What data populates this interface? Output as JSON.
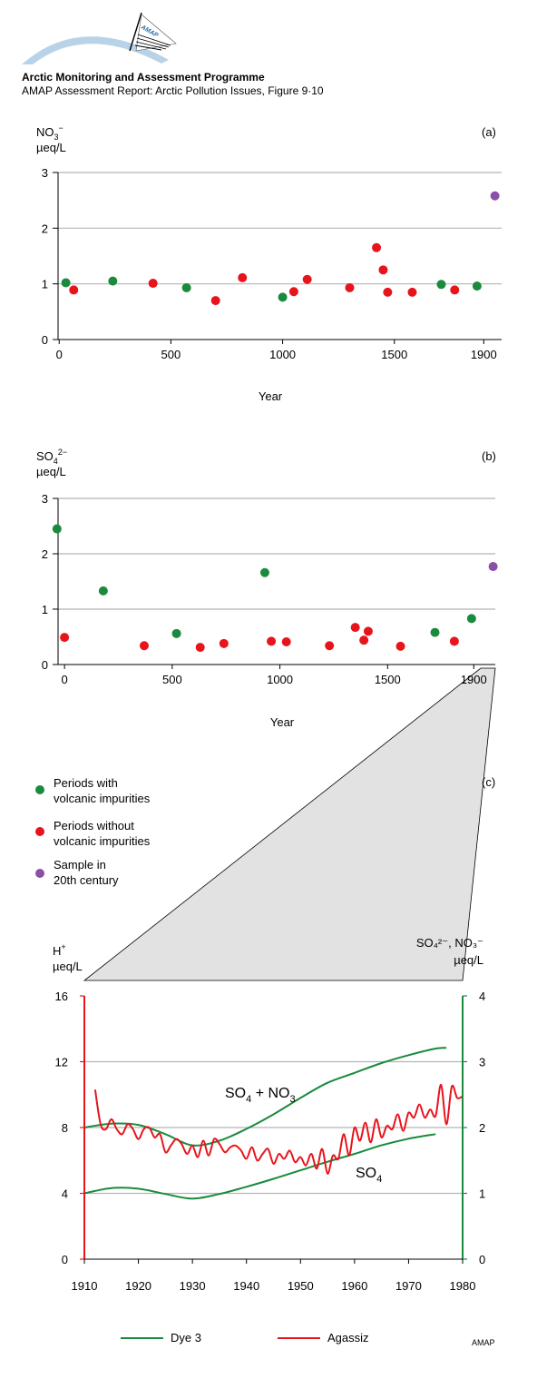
{
  "header": {
    "logo_text": "AMAP",
    "org": "Arctic Monitoring and Assessment Programme",
    "report": "AMAP Assessment Report: Arctic Pollution Issues, Figure 9·10"
  },
  "colors": {
    "volcanic": "#1a8a3c",
    "non_volcanic": "#e8141c",
    "twentieth": "#8b4fa8",
    "dye3": "#1a8a3c",
    "agassiz": "#e8141c",
    "grid": "#b4b4b4",
    "zoom_fill": "#e2e2e2"
  },
  "legend": {
    "items": [
      {
        "line1": "Periods with",
        "line2": "volcanic impurities",
        "color": "#1a8a3c"
      },
      {
        "line1": "Periods without",
        "line2": "volcanic impurities",
        "color": "#e8141c"
      },
      {
        "line1": "Sample in",
        "line2": "20th century",
        "color": "#8b4fa8"
      }
    ]
  },
  "footer": {
    "credit": "AMAP"
  },
  "chart_data": [
    {
      "type": "scatter",
      "panel": "(a)",
      "ylabel_main": "NO",
      "ylabel_sub": "3",
      "ylabel_sup": "−",
      "ylabel_unit": "µeq/L",
      "xlabel": "Year",
      "xlim": [
        -5,
        1980
      ],
      "ylim": [
        0,
        3
      ],
      "yticks": [
        "0",
        "1",
        "2",
        "3"
      ],
      "xticks": [
        {
          "v": 0,
          "label": "0"
        },
        {
          "v": 500,
          "label": "500"
        },
        {
          "v": 1000,
          "label": "1000"
        },
        {
          "v": 1500,
          "label": "1500"
        },
        {
          "v": 1900,
          "label": "1900"
        }
      ],
      "grid": true,
      "series": [
        {
          "group": "volcanic",
          "points": [
            [
              30,
              1.02
            ],
            [
              240,
              1.05
            ],
            [
              570,
              0.93
            ],
            [
              1000,
              0.76
            ],
            [
              1710,
              0.99
            ],
            [
              1870,
              0.96
            ]
          ]
        },
        {
          "group": "non_volcanic",
          "points": [
            [
              65,
              0.89
            ],
            [
              420,
              1.01
            ],
            [
              700,
              0.7
            ],
            [
              820,
              1.11
            ],
            [
              1050,
              0.86
            ],
            [
              1110,
              1.08
            ],
            [
              1300,
              0.93
            ],
            [
              1420,
              1.65
            ],
            [
              1450,
              1.25
            ],
            [
              1470,
              0.85
            ],
            [
              1580,
              0.85
            ],
            [
              1770,
              0.89
            ]
          ]
        },
        {
          "group": "twentieth",
          "points": [
            [
              1950,
              2.58
            ]
          ]
        }
      ]
    },
    {
      "type": "scatter",
      "panel": "(b)",
      "ylabel_main": "SO",
      "ylabel_sub": "4",
      "ylabel_sup": "2−",
      "ylabel_unit": "µeq/L",
      "xlabel": "Year",
      "xlim": [
        -30,
        2000
      ],
      "ylim": [
        0,
        3
      ],
      "yticks": [
        "0",
        "1",
        "2",
        "3"
      ],
      "xticks": [
        {
          "v": 0,
          "label": "0"
        },
        {
          "v": 500,
          "label": "500"
        },
        {
          "v": 1000,
          "label": "1000"
        },
        {
          "v": 1500,
          "label": "1500"
        },
        {
          "v": 1900,
          "label": "1900"
        }
      ],
      "grid": true,
      "series": [
        {
          "group": "volcanic",
          "points": [
            [
              -35,
              2.45
            ],
            [
              180,
              1.33
            ],
            [
              520,
              0.56
            ],
            [
              930,
              1.66
            ],
            [
              1720,
              0.58
            ],
            [
              1890,
              0.83
            ]
          ]
        },
        {
          "group": "non_volcanic",
          "points": [
            [
              0,
              0.49
            ],
            [
              370,
              0.34
            ],
            [
              630,
              0.31
            ],
            [
              740,
              0.38
            ],
            [
              960,
              0.42
            ],
            [
              1030,
              0.41
            ],
            [
              1230,
              0.34
            ],
            [
              1350,
              0.67
            ],
            [
              1390,
              0.44
            ],
            [
              1410,
              0.6
            ],
            [
              1560,
              0.33
            ],
            [
              1810,
              0.42
            ]
          ]
        },
        {
          "group": "twentieth",
          "points": [
            [
              1990,
              1.77
            ]
          ]
        }
      ]
    },
    {
      "type": "line",
      "panel": "(c)",
      "ylabel_left_main": "H",
      "ylabel_left_sup": "+",
      "ylabel_left_unit": "µeq/L",
      "ylabel_right": "SO₄²⁻, NO₃⁻",
      "ylabel_right_unit": "µeq/L",
      "xlim": [
        1910,
        1980
      ],
      "ylim_left": [
        0,
        16
      ],
      "ylim_right": [
        0,
        4
      ],
      "xticks": [
        "1910",
        "1920",
        "1930",
        "1940",
        "1950",
        "1960",
        "1970",
        "1980"
      ],
      "yticks_left": [
        "0",
        "4",
        "8",
        "12",
        "16"
      ],
      "yticks_right": [
        "0",
        "1",
        "2",
        "3",
        "4"
      ],
      "grid": true,
      "annotations": {
        "so4_no3_a": "SO",
        "so4_no3_sub1": "4",
        "so4_no3_plus": " + NO",
        "so4_no3_sub2": "3",
        "so4_a": "SO",
        "so4_sub": "4"
      },
      "series": [
        {
          "name": "Dye 3",
          "component": "SO4 + NO3",
          "axis": "right",
          "x": [
            1910,
            1915,
            1920,
            1925,
            1930,
            1935,
            1940,
            1945,
            1950,
            1955,
            1960,
            1965,
            1970,
            1975,
            1977
          ],
          "values": [
            2.0,
            2.06,
            2.04,
            1.9,
            1.73,
            1.8,
            1.98,
            2.2,
            2.45,
            2.68,
            2.83,
            2.98,
            3.1,
            3.2,
            3.21
          ]
        },
        {
          "name": "Dye 3",
          "component": "SO4",
          "axis": "right",
          "x": [
            1910,
            1915,
            1920,
            1925,
            1930,
            1935,
            1940,
            1945,
            1950,
            1955,
            1960,
            1965,
            1970,
            1975
          ],
          "values": [
            1.0,
            1.08,
            1.07,
            0.99,
            0.92,
            0.99,
            1.1,
            1.22,
            1.35,
            1.48,
            1.6,
            1.73,
            1.83,
            1.9
          ]
        },
        {
          "name": "Agassiz",
          "axis": "left",
          "x": [
            1912,
            1913,
            1914,
            1915,
            1916,
            1917,
            1918,
            1919,
            1920,
            1921,
            1922,
            1923,
            1924,
            1925,
            1926,
            1927,
            1928,
            1929,
            1930,
            1931,
            1932,
            1933,
            1934,
            1935,
            1936,
            1937,
            1938,
            1939,
            1940,
            1941,
            1942,
            1943,
            1944,
            1945,
            1946,
            1947,
            1948,
            1949,
            1950,
            1951,
            1952,
            1953,
            1954,
            1955,
            1956,
            1957,
            1958,
            1959,
            1960,
            1961,
            1962,
            1963,
            1964,
            1965,
            1966,
            1967,
            1968,
            1969,
            1970,
            1971,
            1972,
            1973,
            1974,
            1975,
            1976,
            1977,
            1978,
            1979,
            1980
          ],
          "values": [
            10.3,
            8.2,
            7.9,
            8.5,
            7.9,
            7.6,
            8.2,
            7.9,
            7.3,
            7.9,
            8.0,
            7.4,
            7.6,
            6.5,
            6.9,
            7.3,
            7.0,
            6.4,
            6.9,
            6.2,
            7.2,
            6.3,
            7.3,
            7.0,
            6.5,
            6.8,
            6.9,
            6.6,
            6.1,
            6.8,
            6.0,
            6.4,
            6.7,
            5.8,
            6.4,
            6.1,
            6.6,
            5.9,
            6.2,
            5.7,
            6.4,
            5.5,
            6.7,
            5.2,
            6.3,
            6.1,
            7.6,
            6.3,
            8.0,
            7.2,
            8.3,
            7.1,
            8.5,
            7.4,
            8.1,
            7.9,
            8.8,
            7.8,
            8.9,
            8.6,
            9.4,
            8.6,
            9.1,
            8.7,
            10.6,
            8.2,
            10.5,
            9.8,
            9.9
          ]
        }
      ],
      "legend": [
        {
          "label": "Dye 3",
          "color": "#1a8a3c"
        },
        {
          "label": "Agassiz",
          "color": "#e8141c"
        }
      ]
    }
  ]
}
